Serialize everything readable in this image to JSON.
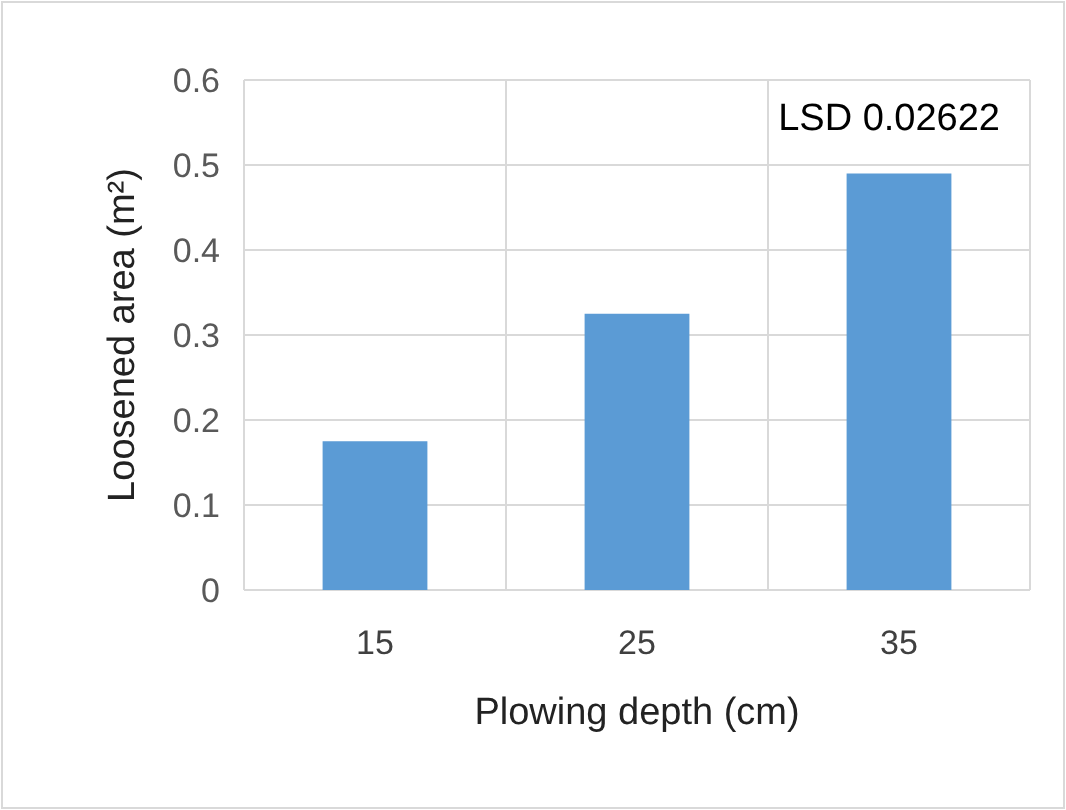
{
  "chart_data": {
    "type": "bar",
    "xlabel": "Plowing depth (cm)",
    "ylabel": "Loosened area (m²)",
    "categories": [
      "15",
      "25",
      "35"
    ],
    "values": [
      0.175,
      0.325,
      0.49
    ],
    "color": "#5b9bd5",
    "ylim": [
      0,
      0.6
    ],
    "yticks": [
      0,
      0.1,
      0.2,
      0.3,
      0.4,
      0.5,
      0.6
    ],
    "grid": true,
    "annotations": [
      "LSD 0.02622"
    ]
  }
}
